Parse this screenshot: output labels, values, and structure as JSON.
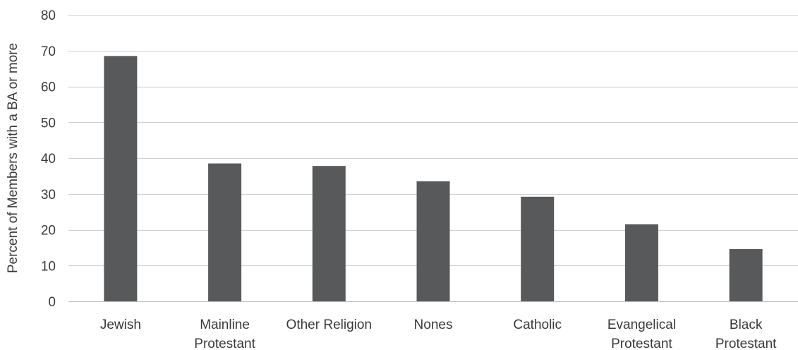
{
  "chart_data": {
    "type": "bar",
    "title": "",
    "xlabel": "",
    "ylabel": "Percent of Members with a BA or more",
    "ylim": [
      0,
      80
    ],
    "yticks": [
      0,
      10,
      20,
      30,
      40,
      50,
      60,
      70,
      80
    ],
    "grid": true,
    "legend": "none",
    "bar_color": "#58595b",
    "categories": [
      [
        "Jewish"
      ],
      [
        "Mainline",
        "Protestant"
      ],
      [
        "Other Religion"
      ],
      [
        "Nones"
      ],
      [
        "Catholic"
      ],
      [
        "Evangelical",
        "Protestant"
      ],
      [
        "Black",
        "Protestant"
      ]
    ],
    "values": [
      68.5,
      38.5,
      37.8,
      33.5,
      29.2,
      21.5,
      14.6
    ]
  }
}
